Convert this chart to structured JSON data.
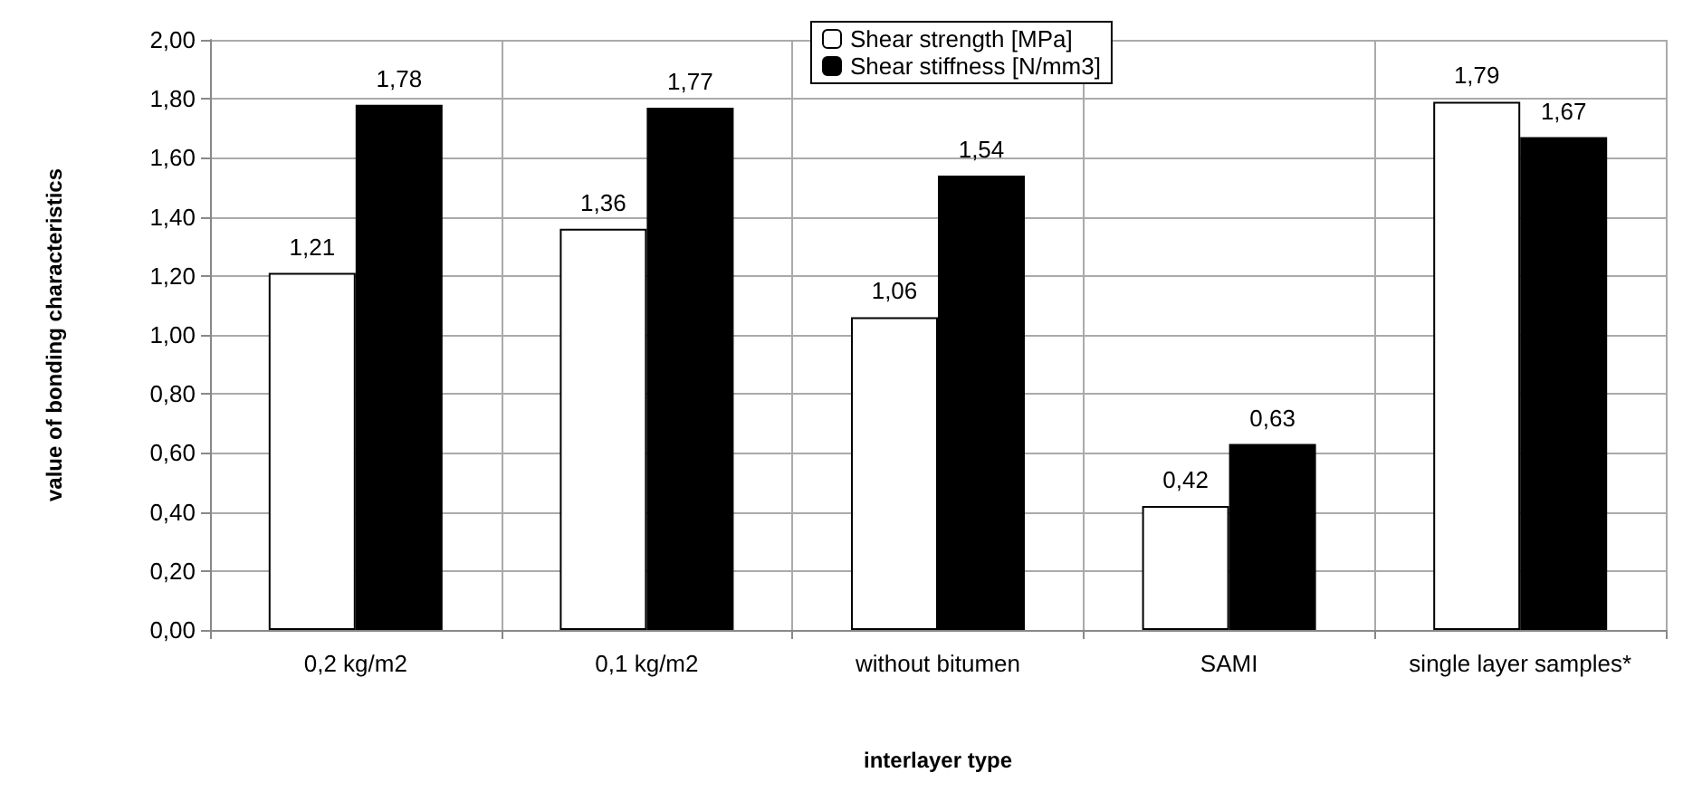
{
  "chart_data": {
    "type": "bar",
    "xlabel": "interlayer type",
    "ylabel": "value of bonding characteristics",
    "categories": [
      "0,2 kg/m2",
      "0,1 kg/m2",
      "without bitumen",
      "SAMI",
      "single layer samples*"
    ],
    "series": [
      {
        "name": "Shear strength [MPa]",
        "color": "#ffffff",
        "values": [
          1.21,
          1.36,
          1.06,
          0.42,
          1.79
        ],
        "value_labels": [
          "1,21",
          "1,36",
          "1,06",
          "0,42",
          "1,79"
        ]
      },
      {
        "name": "Shear stiffness [N/mm3]",
        "color": "#000000",
        "values": [
          1.78,
          1.77,
          1.54,
          0.63,
          1.67
        ],
        "value_labels": [
          "1,78",
          "1,77",
          "1,54",
          "0,63",
          "1,67"
        ]
      }
    ],
    "ylim": [
      0,
      2
    ],
    "yticks": [
      {
        "value": 0,
        "label": "0,00"
      },
      {
        "value": 0.2,
        "label": "0,20"
      },
      {
        "value": 0.4,
        "label": "0,40"
      },
      {
        "value": 0.6,
        "label": "0,60"
      },
      {
        "value": 0.8,
        "label": "0,80"
      },
      {
        "value": 1,
        "label": "1,00"
      },
      {
        "value": 1.2,
        "label": "1,20"
      },
      {
        "value": 1.4,
        "label": "1,40"
      },
      {
        "value": 1.6,
        "label": "1,60"
      },
      {
        "value": 1.8,
        "label": "1,80"
      },
      {
        "value": 2,
        "label": "2,00"
      }
    ],
    "grid": true,
    "legend": "top"
  }
}
